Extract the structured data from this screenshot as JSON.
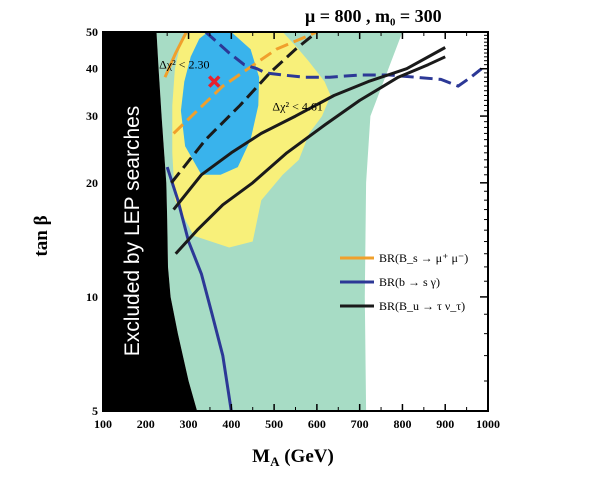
{
  "chart_data": {
    "type": "area",
    "xlabel": "M_A (GeV)",
    "ylabel": "tan β",
    "params_label": "μ = 800 ,  m₀ = 300",
    "xlim": [
      100,
      1000
    ],
    "ylim": [
      5,
      50
    ],
    "x_ticks": [
      100,
      200,
      300,
      400,
      500,
      600,
      700,
      800,
      900,
      1000
    ],
    "y_ticks": [
      5,
      10,
      20,
      30,
      40,
      50
    ],
    "y_scale": "log",
    "best_fit": {
      "x": 360,
      "y": 37,
      "color": "#e8222e"
    },
    "lep_excluded": {
      "label": "Excluded by LEP searches",
      "color": "#000000",
      "boundary": [
        [
          225,
          50
        ],
        [
          230,
          40
        ],
        [
          237,
          30
        ],
        [
          242,
          25
        ],
        [
          248,
          20
        ],
        [
          250,
          16
        ],
        [
          252,
          12
        ],
        [
          258,
          10
        ],
        [
          275,
          8
        ],
        [
          300,
          6
        ],
        [
          320,
          5
        ]
      ]
    },
    "regions": [
      {
        "label": "",
        "color": "#a7dcc5",
        "polygon": [
          [
            290,
            50
          ],
          [
            800,
            50
          ],
          [
            725,
            30
          ],
          [
            715,
            20
          ],
          [
            712,
            10
          ],
          [
            715,
            5
          ],
          [
            320,
            5
          ],
          [
            300,
            6
          ],
          [
            275,
            8
          ],
          [
            258,
            10
          ],
          [
            252,
            12
          ],
          [
            250,
            16
          ],
          [
            248,
            20
          ],
          [
            242,
            25
          ],
          [
            237,
            30
          ],
          [
            230,
            40
          ],
          [
            225,
            50
          ]
        ]
      },
      {
        "label": "Δχ² < 4.61",
        "label_pos": [
          555,
          31
        ],
        "color": "#f8f07a",
        "polygon": [
          [
            300,
            50
          ],
          [
            520,
            50
          ],
          [
            550,
            46
          ],
          [
            580,
            42
          ],
          [
            618,
            37
          ],
          [
            632,
            34
          ],
          [
            612,
            30
          ],
          [
            582,
            27
          ],
          [
            558,
            23
          ],
          [
            520,
            21
          ],
          [
            470,
            18
          ],
          [
            450,
            14
          ],
          [
            395,
            13.5
          ],
          [
            312,
            14.5
          ],
          [
            268,
            18
          ],
          [
            262,
            24
          ],
          [
            262,
            32
          ],
          [
            268,
            40
          ],
          [
            280,
            46
          ]
        ]
      },
      {
        "label": "Δχ² < 2.30",
        "label_pos": [
          290,
          40
        ],
        "color": "#39b3ec",
        "polygon": [
          [
            345,
            50
          ],
          [
            400,
            50
          ],
          [
            445,
            45
          ],
          [
            465,
            38
          ],
          [
            463,
            32
          ],
          [
            445,
            26
          ],
          [
            415,
            22
          ],
          [
            375,
            21
          ],
          [
            330,
            21
          ],
          [
            292,
            25
          ],
          [
            282,
            31
          ],
          [
            290,
            37
          ],
          [
            305,
            43
          ],
          [
            325,
            48
          ]
        ]
      }
    ],
    "series": [
      {
        "name": "BR(B_s → μ⁺ μ⁻)",
        "color": "#f0a02c",
        "lines": [
          {
            "style": "solid",
            "points": [
              [
                245,
                38
              ],
              [
                270,
                44
              ],
              [
                295,
                50
              ]
            ]
          },
          {
            "style": "dashed",
            "points": [
              [
                265,
                27
              ],
              [
                380,
                36
              ],
              [
                505,
                45
              ],
              [
                600,
                50
              ]
            ]
          }
        ]
      },
      {
        "name": "BR(b → s γ)",
        "color": "#2c3896",
        "lines": [
          {
            "style": "solid",
            "points": [
              [
                250,
                22
              ],
              [
                275,
                18
              ],
              [
                300,
                14
              ],
              [
                330,
                11.5
              ],
              [
                355,
                9
              ],
              [
                380,
                7
              ],
              [
                400,
                5
              ]
            ]
          },
          {
            "style": "dashed",
            "points": [
              [
                340,
                50
              ],
              [
                395,
                44
              ],
              [
                430,
                41
              ],
              [
                460,
                40
              ],
              [
                480,
                39
              ],
              [
                520,
                38.5
              ],
              [
                570,
                38
              ],
              [
                630,
                38
              ],
              [
                700,
                38.5
              ],
              [
                770,
                38.5
              ],
              [
                830,
                38
              ],
              [
                890,
                37.5
              ],
              [
                930,
                36
              ],
              [
                960,
                38
              ],
              [
                985,
                40
              ]
            ]
          }
        ]
      },
      {
        "name": "BR(B_u → τ ν_τ)",
        "color": "#1a1a1a",
        "lines": [
          {
            "style": "solid",
            "points": [
              [
                265,
                17
              ],
              [
                330,
                21
              ],
              [
                400,
                24
              ],
              [
                470,
                27
              ],
              [
                550,
                30
              ],
              [
                640,
                34
              ],
              [
                720,
                37
              ],
              [
                810,
                40
              ],
              [
                900,
                45.5
              ]
            ]
          },
          {
            "style": "solid",
            "points": [
              [
                270,
                13
              ],
              [
                320,
                15
              ],
              [
                380,
                17.5
              ],
              [
                450,
                20
              ],
              [
                530,
                24
              ],
              [
                620,
                28.5
              ],
              [
                700,
                33
              ],
              [
                790,
                38
              ],
              [
                860,
                41
              ],
              [
                900,
                43
              ]
            ]
          },
          {
            "style": "dashed",
            "points": [
              [
                260,
                20
              ],
              [
                340,
                26
              ],
              [
                420,
                32
              ],
              [
                490,
                39
              ],
              [
                550,
                45
              ],
              [
                600,
                50
              ]
            ]
          }
        ]
      }
    ],
    "legend_position": "right-center"
  }
}
